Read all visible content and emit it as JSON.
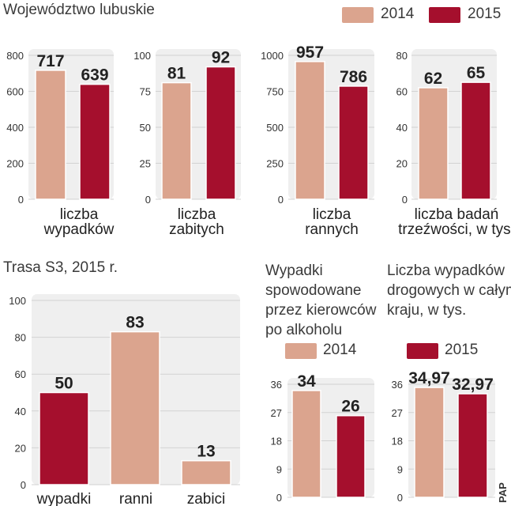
{
  "header": {
    "title": "Województwo lubuskie"
  },
  "legend": {
    "items": [
      {
        "label": "2014",
        "color": "#dba48e"
      },
      {
        "label": "2015",
        "color": "#a50f2d"
      }
    ]
  },
  "colors": {
    "y2014": "#dba48e",
    "y2015": "#a50f2d",
    "panel": "#efefef",
    "grid": "#d2d2d2"
  },
  "section2": {
    "title": "Trasa S3, 2015 r."
  },
  "section3": {
    "title_lines": [
      "Wypadki",
      "spowodowane",
      "przez kierowców",
      "po alkoholu"
    ]
  },
  "section4": {
    "title_lines": [
      "Liczba wypadków",
      "drogowych w całym",
      "kraju, w tys."
    ]
  },
  "credit": "PAP",
  "chart_data": [
    {
      "id": "wypadki",
      "type": "bar",
      "categories": [
        "2014",
        "2015"
      ],
      "values": [
        717,
        639
      ],
      "value_labels": [
        "717",
        "639"
      ],
      "ylim": [
        0,
        800
      ],
      "yticks": [
        "0",
        "200",
        "400",
        "600",
        "800"
      ],
      "xlabel_lines": [
        "liczba",
        "wypadków"
      ],
      "colors": [
        "#dba48e",
        "#a50f2d"
      ]
    },
    {
      "id": "zabici",
      "type": "bar",
      "categories": [
        "2014",
        "2015"
      ],
      "values": [
        81,
        92
      ],
      "value_labels": [
        "81",
        "92"
      ],
      "ylim": [
        0,
        100
      ],
      "yticks": [
        "0",
        "25",
        "50",
        "75",
        "100"
      ],
      "xlabel_lines": [
        "liczba",
        "zabitych"
      ],
      "colors": [
        "#dba48e",
        "#a50f2d"
      ]
    },
    {
      "id": "ranni",
      "type": "bar",
      "categories": [
        "2014",
        "2015"
      ],
      "values": [
        957,
        786
      ],
      "value_labels": [
        "957",
        "786"
      ],
      "ylim": [
        0,
        1000
      ],
      "yticks": [
        "0",
        "250",
        "500",
        "750",
        "1000"
      ],
      "xlabel_lines": [
        "liczba",
        "rannych"
      ],
      "colors": [
        "#dba48e",
        "#a50f2d"
      ]
    },
    {
      "id": "badania",
      "type": "bar",
      "categories": [
        "2014",
        "2015"
      ],
      "values": [
        62,
        65
      ],
      "value_labels": [
        "62",
        "65"
      ],
      "ylim": [
        0,
        80
      ],
      "yticks": [
        "0",
        "20",
        "40",
        "60",
        "80"
      ],
      "xlabel_lines": [
        "liczba badań",
        "trzeźwości, w tys."
      ],
      "colors": [
        "#dba48e",
        "#a50f2d"
      ]
    },
    {
      "id": "s3",
      "type": "bar",
      "categories": [
        "wypadki",
        "ranni",
        "zabici"
      ],
      "values": [
        50,
        83,
        13
      ],
      "value_labels": [
        "50",
        "83",
        "13"
      ],
      "ylim": [
        0,
        100
      ],
      "yticks": [
        "0",
        "20",
        "40",
        "60",
        "80",
        "100"
      ],
      "colors": [
        "#a50f2d",
        "#dba48e",
        "#dba48e"
      ]
    },
    {
      "id": "alkohol",
      "type": "bar",
      "categories": [
        "2014",
        "2015"
      ],
      "values": [
        34,
        26
      ],
      "value_labels": [
        "34",
        "26"
      ],
      "ylim": [
        0,
        36
      ],
      "yticks": [
        "0",
        "9",
        "18",
        "27",
        "36"
      ],
      "colors": [
        "#dba48e",
        "#a50f2d"
      ]
    },
    {
      "id": "kraj",
      "type": "bar",
      "categories": [
        "2014",
        "2015"
      ],
      "values": [
        34.97,
        32.97
      ],
      "value_labels": [
        "34,97",
        "32,97"
      ],
      "ylim": [
        0,
        36
      ],
      "yticks": [
        "0",
        "9",
        "18",
        "27",
        "36"
      ],
      "colors": [
        "#dba48e",
        "#a50f2d"
      ]
    }
  ]
}
